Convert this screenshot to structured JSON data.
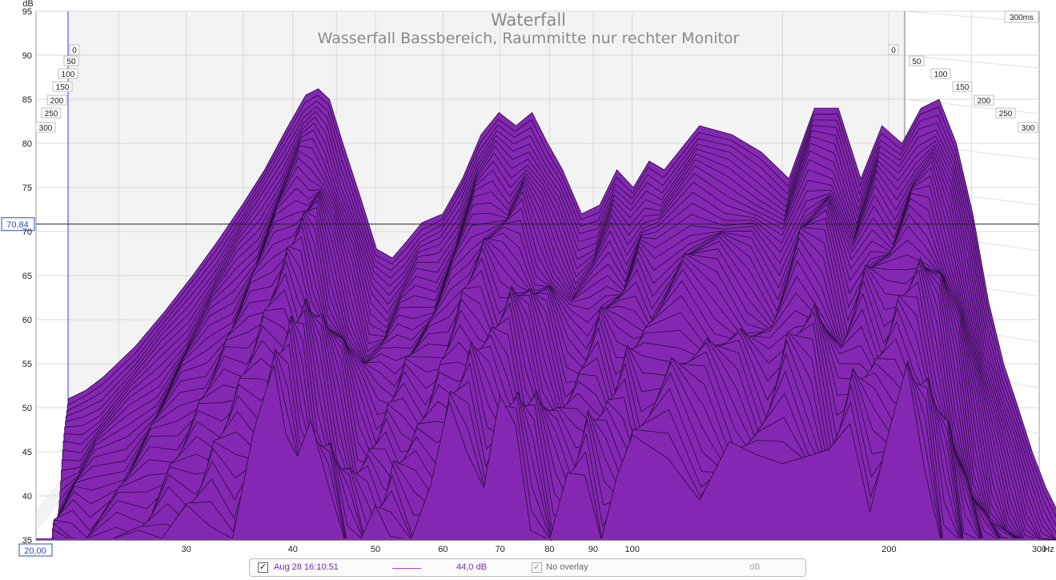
{
  "chart_data": {
    "type": "area",
    "title": "Waterfall",
    "subtitle": "Wasserfall Bassbereich, Raummitte nur rechter Monitor",
    "y_unit": "dB",
    "x_unit": "Hz",
    "time_unit": "ms",
    "xlim": [
      20,
      300
    ],
    "ylim": [
      35,
      95
    ],
    "x_scale": "log",
    "x_ticks": [
      30,
      40,
      50,
      60,
      70,
      80,
      90,
      100,
      200
    ],
    "y_ticks": [
      35,
      40,
      45,
      50,
      55,
      60,
      65,
      70,
      75,
      80,
      85,
      90,
      95
    ],
    "time_ticks": [
      0,
      50,
      100,
      150,
      200,
      250,
      300
    ],
    "time_max_label": "300ms",
    "x_start_label": "20,00",
    "cursor_db_label": "70,84",
    "cursor_db": 70.84,
    "fill_color": "#8428b4",
    "series": [
      {
        "time_ms": 0,
        "x": [
          20,
          21,
          22,
          24,
          26,
          28,
          30,
          32,
          34,
          36,
          38,
          39.3,
          40.5,
          42,
          44,
          46,
          48,
          50,
          52,
          55,
          58,
          61,
          64,
          67,
          70,
          73,
          76,
          80,
          84,
          88,
          92,
          96,
          100,
          110,
          120,
          130,
          140,
          150,
          160,
          170,
          180,
          190,
          200,
          210,
          220,
          230,
          240,
          250,
          260,
          270,
          280,
          290,
          300
        ],
        "y": [
          51,
          52,
          53.5,
          57,
          61,
          65,
          69,
          73,
          77,
          81.5,
          85.5,
          86.2,
          85,
          80,
          74,
          68,
          67,
          69,
          71,
          72,
          76,
          81,
          83.5,
          82,
          83.5,
          80,
          77,
          72,
          73,
          77,
          75,
          78,
          77,
          82,
          81,
          79,
          76,
          84,
          84,
          76,
          82,
          80,
          84,
          85,
          80,
          72,
          62,
          55,
          50,
          45,
          41,
          38,
          36
        ]
      }
    ]
  },
  "legend": {
    "measurement_label": "Aug 28 16:10:51",
    "measurement_checked": "✓",
    "smoothing_value": "44,0 dB",
    "overlay_checked": "✓",
    "overlay_label": "No overlay",
    "unit_label": "dB"
  }
}
